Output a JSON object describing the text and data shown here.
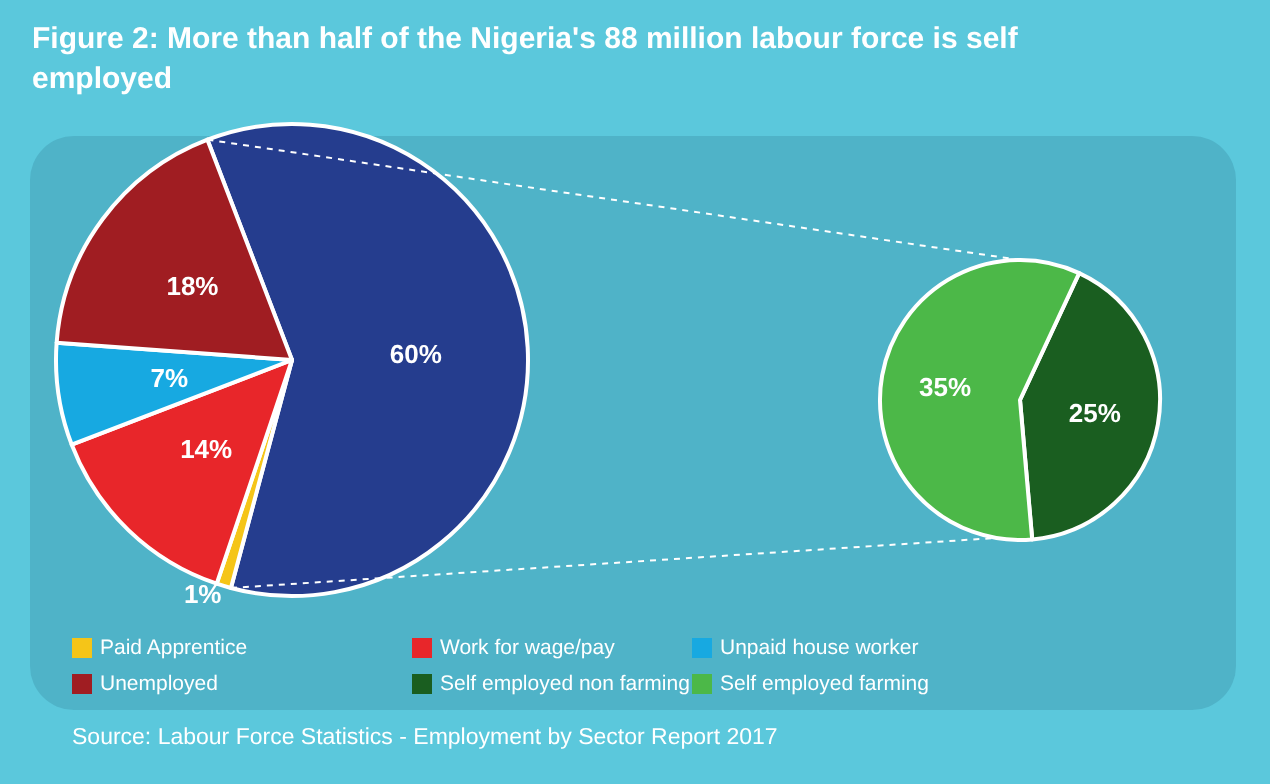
{
  "chart_data": [
    {
      "type": "pie",
      "title": "Figure 2: More than half of the Nigeria's 88 million labour force is self employed",
      "categories": [
        null,
        "Paid Apprentice",
        "Work for wage/pay",
        "Unpaid house worker",
        "Unemployed"
      ],
      "values": [
        60,
        1,
        14,
        7,
        18
      ],
      "value_labels": [
        "60%",
        "1%",
        "14%",
        "7%",
        "18%"
      ],
      "colors": [
        "#253d8e",
        "#f5c518",
        "#e8262a",
        "#17a9e1",
        "#a01d22"
      ],
      "legend": "bottom",
      "annotations": [
        "Source: Labour Force Statistics - Employment by Sector Report 2017"
      ]
    },
    {
      "type": "pie",
      "categories": [
        "Self employed non farming",
        "Self employed farming"
      ],
      "values": [
        25,
        35
      ],
      "value_labels": [
        "25%",
        "35%"
      ],
      "colors": [
        "#1a5e20",
        "#4cb848"
      ],
      "legend": "bottom"
    }
  ]
}
